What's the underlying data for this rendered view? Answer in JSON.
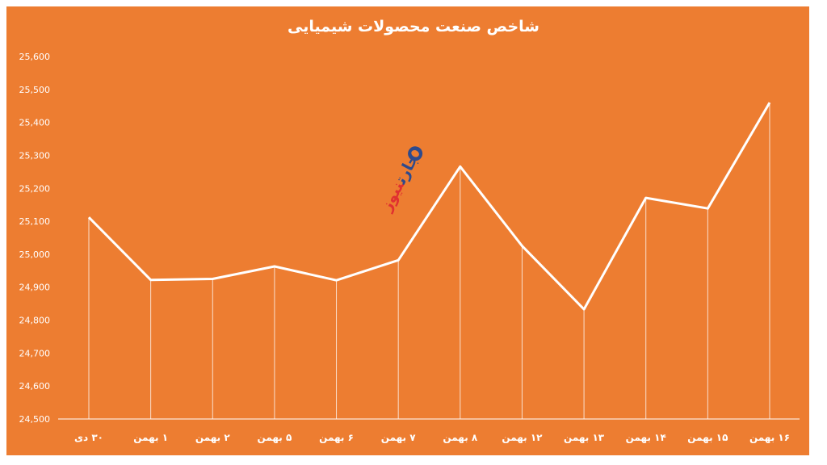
{
  "chart_data": {
    "type": "line",
    "title": "شاخص صنعت محصولات شیمیایی",
    "categories": [
      "۳۰ دی",
      "۱ بهمن",
      "۲ بهمن",
      "۵ بهمن",
      "۶ بهمن",
      "۷ بهمن",
      "۸ بهمن",
      "۱۲ بهمن",
      "۱۳ بهمن",
      "۱۴ بهمن",
      "۱۵ بهمن",
      "۱۶ بهمن"
    ],
    "values": [
      25112,
      24922,
      24925,
      24963,
      24921,
      24982,
      25266,
      25025,
      24833,
      25171,
      25139,
      25460
    ],
    "ylim": [
      24500,
      25600
    ],
    "yticks": [
      "24,500",
      "24,600",
      "24,700",
      "24,800",
      "24,900",
      "25,000",
      "25,100",
      "25,200",
      "25,300",
      "25,400",
      "25,500",
      "25,600"
    ],
    "ytick_values": [
      24500,
      24600,
      24700,
      24800,
      24900,
      25000,
      25100,
      25200,
      25300,
      25400,
      25500,
      25600
    ],
    "grid": false,
    "drop_lines": true,
    "colors": {
      "background": "#ED7D31",
      "line": "#FFFFFF",
      "text": "#FFFFFF"
    }
  },
  "watermark": {
    "part1": "تجارت",
    "part2": "نیوز"
  }
}
